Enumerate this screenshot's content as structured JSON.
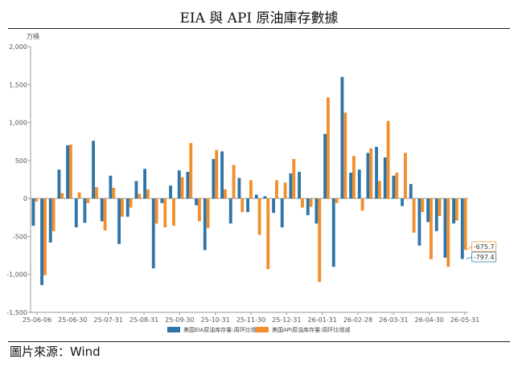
{
  "page": {
    "title": "EIA 與 API 原油庫存數據",
    "source": "圖片來源：Wind"
  },
  "chart_data": {
    "type": "bar",
    "title": "EIA 與 API 原油庫存數據",
    "yunit": "万桶",
    "ylim": [
      -1500,
      2000
    ],
    "yticks": [
      -1500,
      -1000,
      -500,
      0,
      500,
      1000,
      1500,
      2000
    ],
    "ytick_labels": [
      "-1,500",
      "-1,000",
      "-500",
      "0",
      "500",
      "1,000",
      "1,500",
      "2,000"
    ],
    "xtick_labels": [
      "25-06-06",
      "25-06-30",
      "25-07-31",
      "25-08-31",
      "25-09-30",
      "25-10-31",
      "25-11-30",
      "25-12-31",
      "26-01-31",
      "26-02-28",
      "26-03-31",
      "26-04-30",
      "26-05-31"
    ],
    "grid": false,
    "legend_position": "bottom",
    "colors": {
      "eia": "#2e75a8",
      "api": "#f28e2b"
    },
    "series": [
      {
        "name": "美国EIA原油库存量:周环比增减",
        "values": [
          -360,
          -1140,
          -580,
          380,
          700,
          -380,
          -320,
          760,
          -300,
          300,
          -600,
          -240,
          230,
          390,
          -920,
          -60,
          170,
          370,
          350,
          -90,
          -680,
          520,
          620,
          -330,
          270,
          -180,
          50,
          30,
          -190,
          -380,
          330,
          350,
          -220,
          -330,
          850,
          -900,
          1600,
          340,
          380,
          600,
          680,
          540,
          300,
          -100,
          190,
          -620,
          -310,
          -430,
          -780,
          -330,
          -797.4
        ]
      },
      {
        "name": "美国API原油库存量:周环比增减",
        "values": [
          -40,
          -1010,
          -430,
          70,
          710,
          80,
          -60,
          150,
          -420,
          140,
          -240,
          -120,
          60,
          120,
          -330,
          -380,
          -360,
          280,
          730,
          -300,
          -390,
          640,
          120,
          440,
          -180,
          240,
          -480,
          -930,
          240,
          210,
          520,
          -120,
          -110,
          -1100,
          1330,
          -60,
          1130,
          560,
          -160,
          660,
          230,
          1020,
          340,
          600,
          -450,
          -180,
          -800,
          -230,
          -900,
          -290,
          -675.7
        ]
      }
    ],
    "callouts": [
      "-675.7",
      "-797.4"
    ]
  }
}
